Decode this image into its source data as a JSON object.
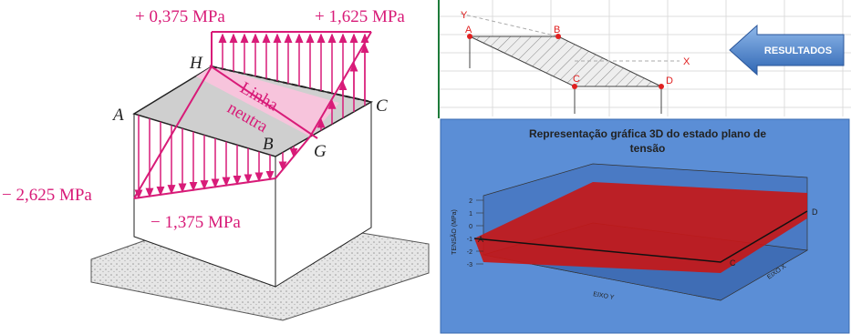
{
  "figure": {
    "stress_labels": {
      "top_left": "+ 0,375 MPa",
      "top_right": "+ 1,625 MPa",
      "left": "− 2,625 MPa",
      "bottom": "− 1,375 MPa"
    },
    "points": {
      "H": "H",
      "A": "A",
      "B": "B",
      "C": "C",
      "G": "G"
    },
    "neutral_line": [
      "Linha",
      "neutra"
    ]
  },
  "sketch": {
    "axes": [
      "Y",
      "X"
    ],
    "points": [
      "A",
      "B",
      "C",
      "D"
    ]
  },
  "button": "RESULTADOS",
  "chart": {
    "title_lines": [
      "Representação gráfica 3D do estado plano de",
      "tensão"
    ],
    "z_axis_label": "TENSÃO (MPa)",
    "z_ticks": [
      2,
      1,
      0,
      -1,
      -2,
      -3
    ],
    "x_axis_label": "EIXO X",
    "y_axis_label": "EIXO Y",
    "corner_labels": [
      "A",
      "D",
      "C"
    ]
  }
}
